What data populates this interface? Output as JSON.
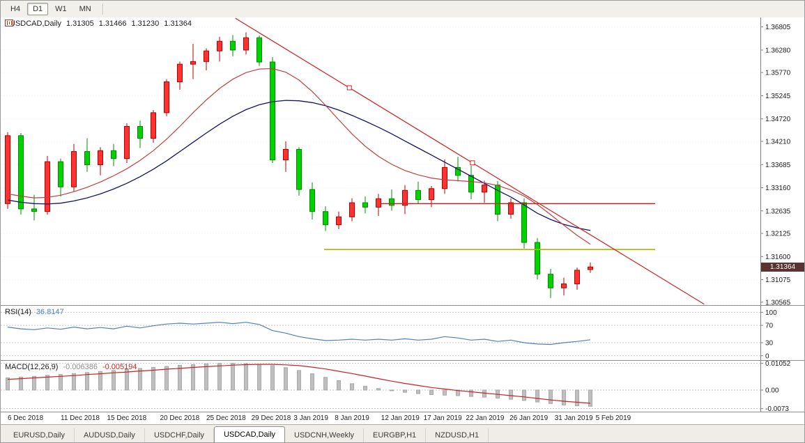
{
  "toolbar": {
    "timeframes": [
      "H4",
      "D1",
      "W1",
      "MN"
    ],
    "active": "D1"
  },
  "chart_data": {
    "type": "candlestick",
    "title": "USDCAD,Daily",
    "ohlc_display": [
      "1.31305",
      "1.31466",
      "1.31230",
      "1.31364"
    ],
    "colors": {
      "bull": "#ff3232",
      "bull_border": "#b40000",
      "bear": "#00d200",
      "bear_border": "#008c00",
      "ma_slow": "#121266",
      "ma_fast": "#c04040",
      "trendline": "#cc2424",
      "hline_red": "#cc2020",
      "hline_olive": "#b4b400",
      "rsi_line": "#4f81bd",
      "macd_hist": "#bfbfbf",
      "macd_signal": "#cc2020",
      "price_badge_bg": "#5c3333"
    },
    "main": {
      "ylim": [
        1.305,
        1.3702
      ],
      "current_price": "1.31364",
      "axis_labels": [
        "1.36805",
        "1.36280",
        "1.35770",
        "1.35245",
        "1.34720",
        "1.34210",
        "1.33685",
        "1.33160",
        "1.32635",
        "1.32125",
        "1.31600",
        "1.31075",
        "1.30565"
      ],
      "candles": [
        [
          1.328,
          1.3442,
          1.3268,
          1.3434
        ],
        [
          1.3434,
          1.344,
          1.3255,
          1.3268
        ],
        [
          1.3268,
          1.33,
          1.3242,
          1.3262
        ],
        [
          1.3262,
          1.3388,
          1.3255,
          1.3375
        ],
        [
          1.3375,
          1.3382,
          1.3296,
          1.3318
        ],
        [
          1.3318,
          1.3415,
          1.3308,
          1.3398
        ],
        [
          1.3398,
          1.3428,
          1.3352,
          1.3368
        ],
        [
          1.3368,
          1.3408,
          1.3344,
          1.34
        ],
        [
          1.34,
          1.3415,
          1.3365,
          1.3382
        ],
        [
          1.3382,
          1.3462,
          1.3372,
          1.3455
        ],
        [
          1.3455,
          1.3468,
          1.3406,
          1.3428
        ],
        [
          1.3428,
          1.3492,
          1.3418,
          1.3486
        ],
        [
          1.3486,
          1.3562,
          1.3478,
          1.3556
        ],
        [
          1.3556,
          1.3602,
          1.3538,
          1.3596
        ],
        [
          1.3596,
          1.3642,
          1.3562,
          1.3602
        ],
        [
          1.3602,
          1.3632,
          1.3582,
          1.3626
        ],
        [
          1.3626,
          1.3658,
          1.3602,
          1.3648
        ],
        [
          1.3648,
          1.3662,
          1.3614,
          1.3628
        ],
        [
          1.3628,
          1.3668,
          1.3618,
          1.3656
        ],
        [
          1.3656,
          1.3661,
          1.3592,
          1.3601
        ],
        [
          1.3601,
          1.3612,
          1.3372,
          1.3379
        ],
        [
          1.3379,
          1.3421,
          1.3352,
          1.3403
        ],
        [
          1.3403,
          1.3408,
          1.3298,
          1.3312
        ],
        [
          1.3312,
          1.3328,
          1.3244,
          1.3262
        ],
        [
          1.3262,
          1.3274,
          1.3218,
          1.3232
        ],
        [
          1.3232,
          1.3262,
          1.3222,
          1.325
        ],
        [
          1.325,
          1.3292,
          1.324,
          1.3282
        ],
        [
          1.3282,
          1.3296,
          1.3258,
          1.3272
        ],
        [
          1.3272,
          1.3302,
          1.3252,
          1.3291
        ],
        [
          1.3291,
          1.3312,
          1.3264,
          1.3276
        ],
        [
          1.3276,
          1.3322,
          1.3256,
          1.331
        ],
        [
          1.331,
          1.333,
          1.328,
          1.3289
        ],
        [
          1.3289,
          1.332,
          1.3272,
          1.3314
        ],
        [
          1.3314,
          1.338,
          1.3302,
          1.3362
        ],
        [
          1.3362,
          1.3386,
          1.333,
          1.3344
        ],
        [
          1.3344,
          1.3366,
          1.329,
          1.3306
        ],
        [
          1.3306,
          1.3332,
          1.3282,
          1.3322
        ],
        [
          1.3322,
          1.3331,
          1.324,
          1.3256
        ],
        [
          1.3256,
          1.3292,
          1.3246,
          1.3282
        ],
        [
          1.3282,
          1.3292,
          1.3178,
          1.3192
        ],
        [
          1.3192,
          1.3202,
          1.3108,
          1.312
        ],
        [
          1.312,
          1.3132,
          1.3066,
          1.3089
        ],
        [
          1.3089,
          1.3112,
          1.3072,
          1.3098
        ],
        [
          1.3098,
          1.3135,
          1.3085,
          1.3129
        ],
        [
          1.31305,
          1.31466,
          1.3123,
          1.31364
        ]
      ],
      "ma_slow": [
        1.3288,
        1.3283,
        1.328,
        1.3279,
        1.3281,
        1.3286,
        1.3293,
        1.3302,
        1.3313,
        1.3326,
        1.3341,
        1.3358,
        1.3377,
        1.3398,
        1.3419,
        1.344,
        1.346,
        1.3478,
        1.3493,
        1.3504,
        1.3511,
        1.3514,
        1.3513,
        1.3509,
        1.3502,
        1.3492,
        1.348,
        1.3467,
        1.3453,
        1.3438,
        1.3422,
        1.3406,
        1.339,
        1.3374,
        1.3358,
        1.3342,
        1.3326,
        1.331,
        1.3295,
        1.3277,
        1.3258,
        1.3244,
        1.3233,
        1.3225,
        1.3219
      ],
      "ma_fast": [
        1.3302,
        1.3297,
        1.3293,
        1.3294,
        1.3299,
        1.3307,
        1.3317,
        1.3329,
        1.3343,
        1.3359,
        1.3378,
        1.34,
        1.3426,
        1.3455,
        1.3486,
        1.3515,
        1.3541,
        1.3562,
        1.3577,
        1.3585,
        1.3586,
        1.3578,
        1.356,
        1.3534,
        1.3503,
        1.347,
        1.3438,
        1.341,
        1.3387,
        1.3369,
        1.3355,
        1.3345,
        1.3338,
        1.3334,
        1.3332,
        1.333,
        1.3327,
        1.3321,
        1.3311,
        1.3297,
        1.3278,
        1.3255,
        1.3231,
        1.3208,
        1.3188
      ],
      "trendline": {
        "i1": 17.2,
        "p1": 1.37,
        "i2": 52.6,
        "p2": 1.3052,
        "markers_i": [
          25.8,
          35.1
        ]
      },
      "hline_red": {
        "price": 1.328,
        "i1": 28.2,
        "i2": 48.9
      },
      "hline_olive": {
        "price": 1.3176,
        "i1": 23.9,
        "i2": 48.9
      }
    },
    "rsi": {
      "label": "RSI(14)",
      "value": "36.8147",
      "ylim": [
        -10,
        115
      ],
      "axis_labels": [
        "100",
        "70",
        "30",
        "0"
      ],
      "values": [
        66,
        62,
        60,
        64,
        61,
        66,
        62,
        65,
        62,
        68,
        64,
        69,
        73,
        75,
        73,
        75,
        77,
        74,
        77,
        72,
        58,
        52,
        44,
        39,
        35,
        36,
        38,
        36,
        38,
        36,
        39,
        36,
        38,
        44,
        41,
        36,
        38,
        33,
        36,
        30,
        27,
        26,
        30,
        33,
        36.8
      ]
    },
    "macd": {
      "label": "MACD(12,26,9)",
      "values_display": [
        "-0.006386",
        "-0.005194"
      ],
      "ylim": [
        -0.0085,
        0.0115
      ],
      "axis_labels": [
        "0.01052",
        "0.00",
        "-0.0073"
      ],
      "histogram": [
        0.0048,
        0.0051,
        0.0054,
        0.0058,
        0.0061,
        0.0065,
        0.0069,
        0.0073,
        0.0077,
        0.0081,
        0.0085,
        0.0089,
        0.0093,
        0.0097,
        0.01,
        0.0103,
        0.0105,
        0.0105,
        0.0104,
        0.0101,
        0.0096,
        0.0088,
        0.0077,
        0.0064,
        0.005,
        0.0037,
        0.0025,
        0.0015,
        0.0006,
        -0.0002,
        -0.0009,
        -0.0014,
        -0.0018,
        -0.002,
        -0.0022,
        -0.0025,
        -0.0028,
        -0.0032,
        -0.0036,
        -0.0041,
        -0.0047,
        -0.0053,
        -0.0059,
        -0.0062,
        -0.006386
      ],
      "signal": [
        0.0042,
        0.0045,
        0.0048,
        0.0051,
        0.0054,
        0.0057,
        0.0061,
        0.0064,
        0.0068,
        0.0071,
        0.0075,
        0.0078,
        0.0082,
        0.0085,
        0.0089,
        0.0092,
        0.0095,
        0.0098,
        0.01,
        0.0101,
        0.0101,
        0.0099,
        0.0096,
        0.009,
        0.0083,
        0.0074,
        0.0065,
        0.0055,
        0.0045,
        0.0035,
        0.0026,
        0.0018,
        0.001,
        0.0004,
        -0.0002,
        -0.0007,
        -0.0012,
        -0.0017,
        -0.0022,
        -0.0027,
        -0.0033,
        -0.0039,
        -0.0044,
        -0.0048,
        -0.005194
      ]
    },
    "x_labels": [
      {
        "t": "6 Dec 2018",
        "i": 0
      },
      {
        "t": "11 Dec 2018",
        "i": 4
      },
      {
        "t": "15 Dec 2018",
        "i": 7.5
      },
      {
        "t": "20 Dec 2018",
        "i": 11.5
      },
      {
        "t": "25 Dec 2018",
        "i": 15
      },
      {
        "t": "29 Dec 2018",
        "i": 18.4
      },
      {
        "t": "3 Jan 2019",
        "i": 21.6
      },
      {
        "t": "8 Jan 2019",
        "i": 24.7
      },
      {
        "t": "12 Jan 2019",
        "i": 28.2
      },
      {
        "t": "17 Jan 2019",
        "i": 31.4
      },
      {
        "t": "22 Jan 2019",
        "i": 34.6
      },
      {
        "t": "26 Jan 2019",
        "i": 37.9
      },
      {
        "t": "31 Jan 2019",
        "i": 41.3
      },
      {
        "t": "5 Feb 2019",
        "i": 44.4
      }
    ]
  },
  "tabs": {
    "items": [
      "EURUSD,Daily",
      "AUDUSD,Daily",
      "USDCHF,Daily",
      "USDCAD,Daily",
      "USDCNH,Weekly",
      "EURGBP,H1",
      "NZDUSD,H1"
    ],
    "active": "USDCAD,Daily"
  }
}
